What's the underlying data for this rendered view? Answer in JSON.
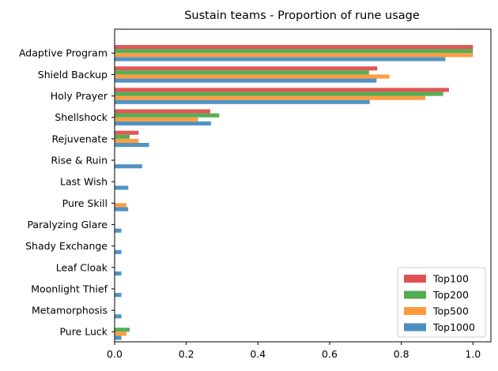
{
  "chart_data": {
    "type": "bar",
    "orientation": "horizontal",
    "title": "Sustain teams - Proportion of rune usage",
    "xlabel": "",
    "ylabel": "",
    "xlim": [
      0,
      1.05
    ],
    "xticks": [
      "0.0",
      "0.2",
      "0.4",
      "0.6",
      "0.8",
      "1.0"
    ],
    "grid": false,
    "legend_position": "lower-right",
    "categories": [
      "Adaptive Program",
      "Shield Backup",
      "Holy Prayer",
      "Shellshock",
      "Rejuvenate",
      "Rise & Ruin",
      "Last Wish",
      "Pure Skill",
      "Paralyzing Glare",
      "Shady Exchange",
      "Leaf Cloak",
      "Moonlight Thief",
      "Metamorphosis",
      "Pure Luck"
    ],
    "series": [
      {
        "name": "Top100",
        "color": "#e05252",
        "values": [
          1.0,
          0.733,
          0.933,
          0.267,
          0.067,
          0.0,
          0.0,
          0.0,
          0.0,
          0.0,
          0.0,
          0.0,
          0.0,
          0.0
        ]
      },
      {
        "name": "Top200",
        "color": "#4fac4f",
        "values": [
          1.0,
          0.71,
          0.917,
          0.292,
          0.042,
          0.0,
          0.0,
          0.0,
          0.0,
          0.0,
          0.0,
          0.0,
          0.0,
          0.042
        ]
      },
      {
        "name": "Top500",
        "color": "#ff9a3c",
        "values": [
          1.0,
          0.767,
          0.867,
          0.233,
          0.067,
          0.0,
          0.0,
          0.033,
          0.0,
          0.0,
          0.0,
          0.0,
          0.0,
          0.033
        ]
      },
      {
        "name": "Top1000",
        "color": "#4a8fc1",
        "values": [
          0.923,
          0.731,
          0.712,
          0.269,
          0.096,
          0.077,
          0.038,
          0.038,
          0.019,
          0.019,
          0.019,
          0.019,
          0.019,
          0.019
        ]
      }
    ]
  }
}
